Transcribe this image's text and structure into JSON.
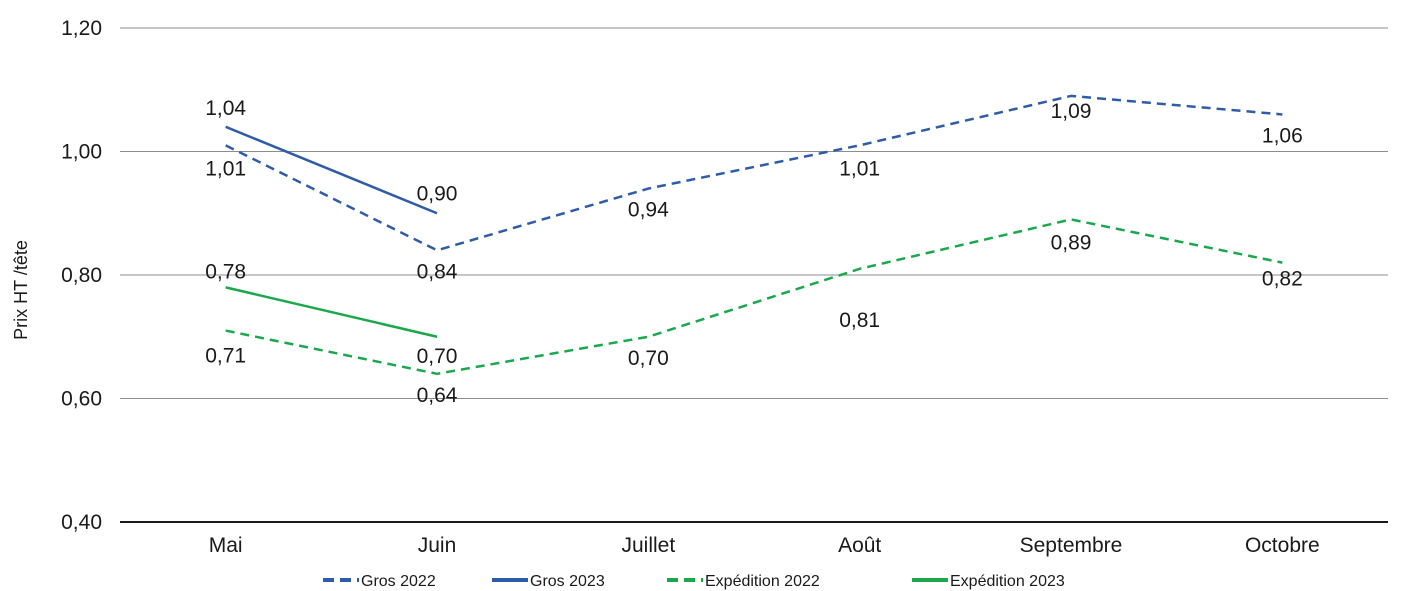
{
  "chart_data": {
    "type": "line",
    "title": "",
    "xlabel": "",
    "ylabel": "Prix HT /tête",
    "categories": [
      "Mai",
      "Juin",
      "Juillet",
      "Août",
      "Septembre",
      "Octobre"
    ],
    "ylim": [
      0.4,
      1.2
    ],
    "yticks": [
      "0,40",
      "0,60",
      "0,80",
      "1,00",
      "1,20"
    ],
    "grid": true,
    "legend_position": "bottom",
    "series": [
      {
        "name": "Gros 2022",
        "values": [
          1.01,
          0.84,
          0.94,
          1.01,
          1.09,
          1.06
        ],
        "labels": [
          "1,01",
          "0,84",
          "0,94",
          "1,01",
          "1,09",
          "1,06"
        ],
        "color": "#2f5ca8",
        "style": "dashed"
      },
      {
        "name": "Gros 2023",
        "values": [
          1.04,
          0.9,
          null,
          null,
          null,
          null
        ],
        "labels": [
          "1,04",
          "0,90",
          null,
          null,
          null,
          null
        ],
        "color": "#2f5ca8",
        "style": "solid"
      },
      {
        "name": "Expédition 2022",
        "values": [
          0.71,
          0.64,
          0.7,
          0.81,
          0.89,
          0.82
        ],
        "labels": [
          "0,71",
          "0,64",
          "0,70",
          "0,81",
          "0,89",
          "0,82"
        ],
        "color": "#1aa84b",
        "style": "dashed"
      },
      {
        "name": "Expédition 2023",
        "values": [
          0.78,
          0.7,
          null,
          null,
          null,
          null
        ],
        "labels": [
          "0,78",
          "0,70",
          null,
          null,
          null,
          null
        ],
        "color": "#1aa84b",
        "style": "solid"
      }
    ]
  }
}
